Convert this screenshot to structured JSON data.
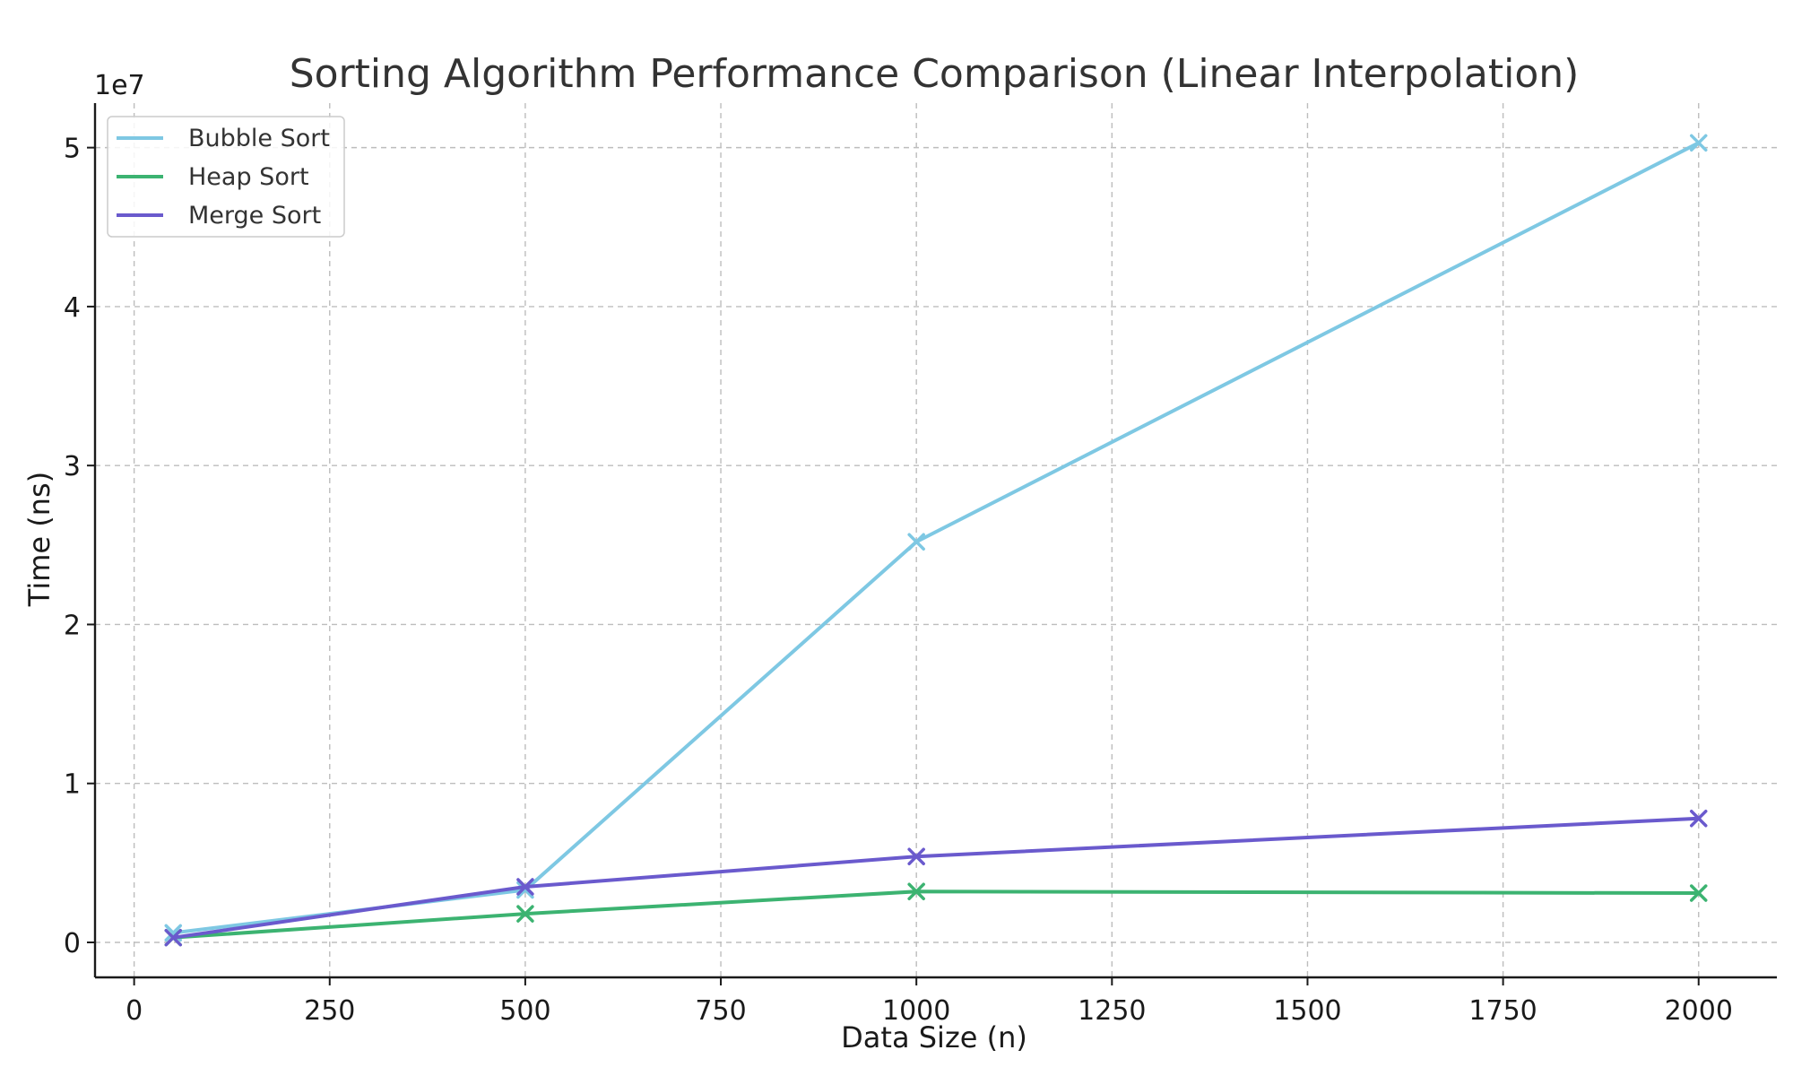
{
  "chart_data": {
    "type": "line",
    "title": "Sorting Algorithm Performance Comparison (Linear Interpolation)",
    "xlabel": "Data Size (n)",
    "ylabel": "Time (ns)",
    "y_offset_label": "1e7",
    "x_ticks": [
      "0",
      "250",
      "500",
      "750",
      "1000",
      "1250",
      "1500",
      "1750",
      "2000"
    ],
    "y_ticks": [
      "0",
      "1",
      "2",
      "3",
      "4",
      "5"
    ],
    "xlim": [
      -50,
      2100
    ],
    "ylim": [
      -2200000,
      52800000
    ],
    "grid": true,
    "legend_position": "top-left",
    "marker": "x",
    "series": [
      {
        "name": "Bubble Sort",
        "color": "#7ec8e3",
        "x": [
          50,
          500,
          1000,
          2000
        ],
        "y": [
          600000,
          3300000,
          25200000,
          50300000
        ]
      },
      {
        "name": "Heap Sort",
        "color": "#3cb371",
        "x": [
          50,
          500,
          1000,
          2000
        ],
        "y": [
          300000,
          1800000,
          3200000,
          3100000
        ]
      },
      {
        "name": "Merge Sort",
        "color": "#6a5acd",
        "x": [
          50,
          500,
          1000,
          2000
        ],
        "y": [
          300000,
          3500000,
          5400000,
          7800000
        ]
      }
    ]
  }
}
